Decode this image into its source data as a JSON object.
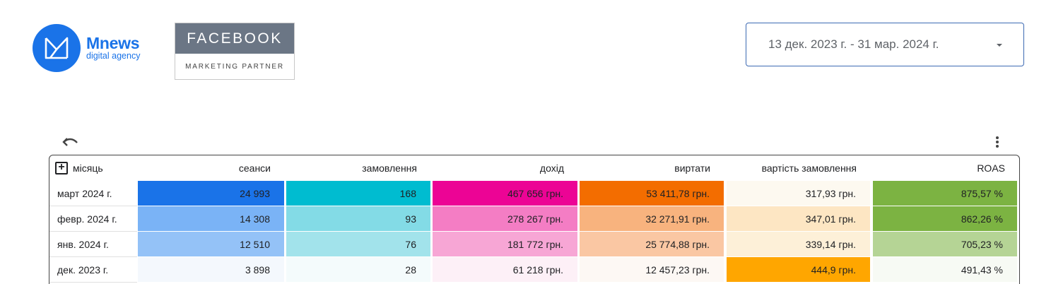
{
  "header": {
    "logo": {
      "name": "Mnews",
      "subtitle": "digital agency"
    },
    "partner_badge": {
      "title": "FACEBOOK",
      "subtitle": "MARKETING PARTNER"
    },
    "date_range": {
      "value": "13 дек. 2023 г. - 31 мар. 2024 г."
    }
  },
  "table": {
    "columns": [
      "місяць",
      "сеанси",
      "замовлення",
      "дохід",
      "виртати",
      "вартість замовлення",
      "ROAS"
    ],
    "rows": [
      {
        "month": "март 2024 г.",
        "cells": [
          "24 993",
          "168",
          "467 656 грн.",
          "53 411,78 грн.",
          "317,93 грн.",
          "875,57 %"
        ]
      },
      {
        "month": "февр. 2024 г.",
        "cells": [
          "14 308",
          "93",
          "278 267 грн.",
          "32 271,91 грн.",
          "347,01 грн.",
          "862,26 %"
        ]
      },
      {
        "month": "янв. 2024 г.",
        "cells": [
          "12 510",
          "76",
          "181 772 грн.",
          "25 774,88 грн.",
          "339,14 грн.",
          "705,23 %"
        ]
      },
      {
        "month": "дек. 2023 г.",
        "cells": [
          "3 898",
          "28",
          "61 218 грн.",
          "12 457,23 грн.",
          "444,9 грн.",
          "491,43 %"
        ]
      }
    ],
    "cell_colors": [
      [
        "#1a73e8",
        "#00bcd0",
        "#ec0495",
        "#f36d00",
        "#fdf9f0",
        "#7cb342"
      ],
      [
        "#7ab3f6",
        "#83dbe6",
        "#f47dc4",
        "#f8b37e",
        "#fde6c3",
        "#7cb342"
      ],
      [
        "#94c2f7",
        "#a2e3eb",
        "#f7a6d5",
        "#fac7a3",
        "#fdf0d8",
        "#b5d495"
      ],
      [
        "#f4f8fd",
        "#f4fbfc",
        "#fdf0f7",
        "#fdf8f4",
        "#ffa600",
        "#f7faf4"
      ]
    ]
  }
}
